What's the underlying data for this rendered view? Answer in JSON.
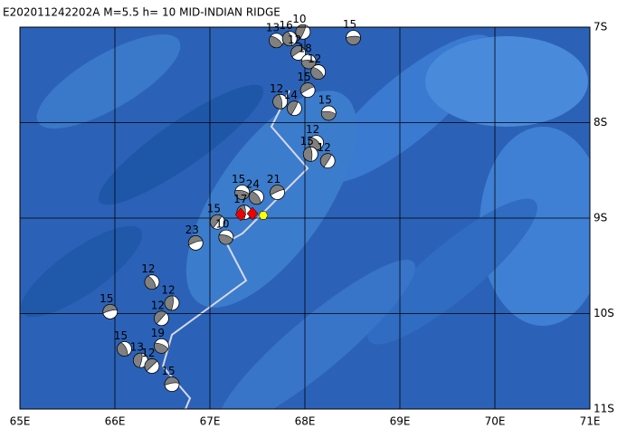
{
  "title": "E202011242202A M=5.5 h= 10 MID-INDIAN RIDGE",
  "map": {
    "xlim": [
      65,
      71
    ],
    "ylim": [
      -11,
      -7
    ],
    "xticks": [
      {
        "value": 65,
        "label": "65E"
      },
      {
        "value": 66,
        "label": "66E"
      },
      {
        "value": 67,
        "label": "67E"
      },
      {
        "value": 68,
        "label": "68E"
      },
      {
        "value": 69,
        "label": "69E"
      },
      {
        "value": 70,
        "label": "70E"
      },
      {
        "value": 71,
        "label": "71E"
      }
    ],
    "yticks": [
      {
        "value": -7,
        "label": "7S"
      },
      {
        "value": -8,
        "label": "8S"
      },
      {
        "value": -9,
        "label": "9S"
      },
      {
        "value": -10,
        "label": "10S"
      },
      {
        "value": -11,
        "label": "11S"
      }
    ],
    "grid": true,
    "events": [
      {
        "lon": 68.51,
        "lat": -7.11,
        "depth": "15"
      },
      {
        "lon": 67.7,
        "lat": -7.14,
        "depth": "13"
      },
      {
        "lon": 67.84,
        "lat": -7.12,
        "depth": "16"
      },
      {
        "lon": 67.98,
        "lat": -7.05,
        "depth": "10"
      },
      {
        "lon": 67.93,
        "lat": -7.27,
        "depth": "12"
      },
      {
        "lon": 68.04,
        "lat": -7.36,
        "depth": "18"
      },
      {
        "lon": 68.14,
        "lat": -7.47,
        "depth": "12"
      },
      {
        "lon": 67.74,
        "lat": -7.78,
        "depth": "12"
      },
      {
        "lon": 67.89,
        "lat": -7.85,
        "depth": "14"
      },
      {
        "lon": 68.03,
        "lat": -7.66,
        "depth": "15"
      },
      {
        "lon": 68.25,
        "lat": -7.9,
        "depth": "15"
      },
      {
        "lon": 68.12,
        "lat": -8.21,
        "depth": "12"
      },
      {
        "lon": 68.06,
        "lat": -8.33,
        "depth": "15"
      },
      {
        "lon": 68.24,
        "lat": -8.4,
        "depth": "12"
      },
      {
        "lon": 67.71,
        "lat": -8.73,
        "depth": "21"
      },
      {
        "lon": 67.34,
        "lat": -8.73,
        "depth": "15"
      },
      {
        "lon": 67.49,
        "lat": -8.78,
        "depth": "24"
      },
      {
        "lon": 67.36,
        "lat": -8.94,
        "depth": "17"
      },
      {
        "lon": 67.08,
        "lat": -9.04,
        "depth": "15"
      },
      {
        "lon": 66.85,
        "lat": -9.26,
        "depth": "23"
      },
      {
        "lon": 67.17,
        "lat": -9.2,
        "depth": "10"
      },
      {
        "lon": 66.39,
        "lat": -9.67,
        "depth": "12"
      },
      {
        "lon": 66.6,
        "lat": -9.89,
        "depth": "12"
      },
      {
        "lon": 66.49,
        "lat": -10.05,
        "depth": "12"
      },
      {
        "lon": 65.95,
        "lat": -9.98,
        "depth": "15"
      },
      {
        "lon": 66.49,
        "lat": -10.34,
        "depth": "19"
      },
      {
        "lon": 66.1,
        "lat": -10.37,
        "depth": "15"
      },
      {
        "lon": 66.27,
        "lat": -10.49,
        "depth": "13"
      },
      {
        "lon": 66.39,
        "lat": -10.55,
        "depth": "12"
      },
      {
        "lon": 66.6,
        "lat": -10.74,
        "depth": "15"
      }
    ]
  }
}
